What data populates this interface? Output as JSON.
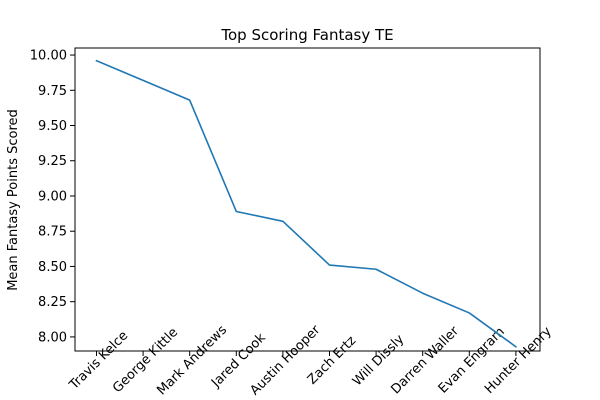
{
  "chart_data": {
    "type": "line",
    "title": "Top Scoring Fantasy TE",
    "xlabel": "",
    "ylabel": "Mean Fantasy Points Scored",
    "categories": [
      "Travis Kelce",
      "George Kittle",
      "Mark Andrews",
      "Jared Cook",
      "Austin Hooper",
      "Zach Ertz",
      "Will Dissly",
      "Darren Waller",
      "Evan Engram",
      "Hunter Henry"
    ],
    "series": [
      {
        "values": [
          9.96,
          9.82,
          9.68,
          8.89,
          8.82,
          8.51,
          8.48,
          8.31,
          8.17,
          7.93
        ],
        "color": "#1f77b4"
      }
    ],
    "ylim": [
      7.9,
      10.05
    ],
    "yticks": [
      8.0,
      8.25,
      8.5,
      8.75,
      9.0,
      9.25,
      9.5,
      9.75,
      10.0
    ],
    "ytick_labels": [
      "8.00",
      "8.25",
      "8.50",
      "8.75",
      "9.00",
      "9.25",
      "9.50",
      "9.75",
      "10.00"
    ],
    "grid": false,
    "legend": "none"
  }
}
